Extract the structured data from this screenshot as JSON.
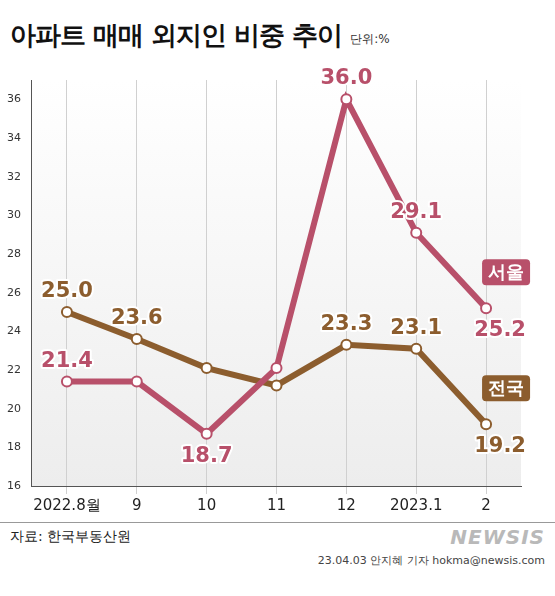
{
  "chart_data": {
    "type": "line",
    "title": "아파트 매매 외지인 비중 추이",
    "subtitle": "단위:%",
    "source": "자료: 한국부동산원",
    "watermark": "NEWSIS",
    "credit": "23.04.03 안지혜 기자 hokma@newsis.com",
    "categories": [
      "2022.8월",
      "9",
      "10",
      "11",
      "12",
      "2023.1",
      "2"
    ],
    "series": [
      {
        "name": "서울",
        "color": "#b8506a",
        "values": [
          21.4,
          21.4,
          18.7,
          22.1,
          36.0,
          29.1,
          25.2
        ],
        "value_labels": [
          "21.4",
          null,
          "18.7",
          null,
          "36.0",
          "29.1",
          "25.2"
        ]
      },
      {
        "name": "전국",
        "color": "#8c5d2e",
        "values": [
          25.0,
          23.6,
          22.1,
          21.2,
          23.3,
          23.1,
          19.2
        ],
        "value_labels": [
          "25.0",
          "23.6",
          null,
          null,
          "23.3",
          "23.1",
          "19.2"
        ]
      }
    ],
    "ylim": [
      16,
      37
    ],
    "yticks": [
      16,
      18,
      20,
      22,
      24,
      26,
      28,
      30,
      32,
      34,
      36
    ],
    "grid": true,
    "data_labels": true,
    "marker": "circle"
  }
}
